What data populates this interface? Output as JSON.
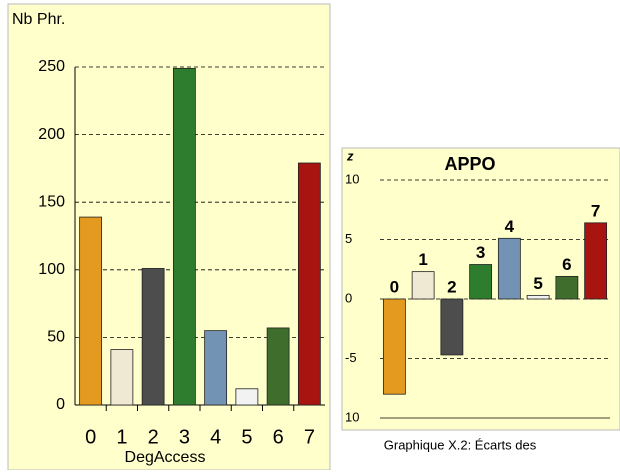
{
  "chart_data": [
    {
      "type": "bar",
      "y_label": "Nb Phr.",
      "x_label": "DegAccess",
      "categories": [
        "0",
        "1",
        "2",
        "3",
        "4",
        "5",
        "6",
        "7"
      ],
      "values": [
        139,
        41,
        101,
        249,
        55,
        12,
        57,
        179
      ],
      "colors": [
        "#e39a1e",
        "#efe8d2",
        "#4d4d4d",
        "#2e7d2e",
        "#7393b5",
        "#f2f2f2",
        "#3f6e2c",
        "#a8140f"
      ],
      "ylim": [
        0,
        250
      ],
      "yticks": [
        0,
        50,
        100,
        150,
        200,
        250
      ],
      "grid": true
    },
    {
      "type": "bar",
      "title": "APPO",
      "y_label": "z",
      "caption": "Graphique X.2: Écarts des",
      "categories": [
        "0",
        "1",
        "2",
        "3",
        "4",
        "5",
        "6",
        "7"
      ],
      "values": [
        -8,
        2.3,
        -4.7,
        2.9,
        5.1,
        0.3,
        1.9,
        6.4
      ],
      "colors": [
        "#e39a1e",
        "#efe8d2",
        "#4d4d4d",
        "#2e7d2e",
        "#7393b5",
        "#f2f2f2",
        "#3f6e2c",
        "#a8140f"
      ],
      "ylim": [
        -10,
        10
      ],
      "yticks": [
        10,
        5,
        0,
        -5,
        {
          "value": -10,
          "label": "10"
        }
      ],
      "grid": true
    }
  ]
}
